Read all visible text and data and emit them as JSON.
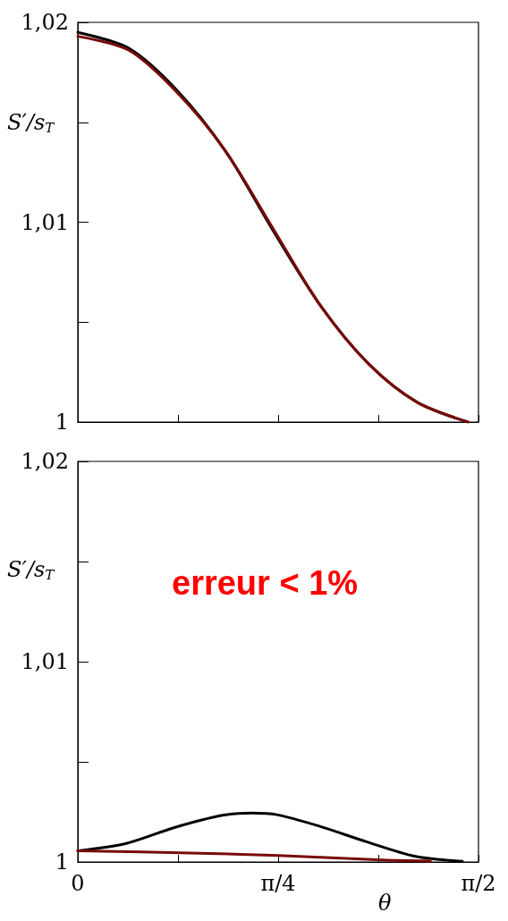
{
  "chart_data": [
    {
      "type": "line",
      "ylabel": "S′/s$_{T}$",
      "xlim": [
        0,
        1.5708
      ],
      "xticks": [
        {
          "value": 0,
          "label": null
        },
        {
          "value": 0.3927,
          "label": null
        },
        {
          "value": 0.7854,
          "label": null
        },
        {
          "value": 1.1781,
          "label": null
        },
        {
          "value": 1.5708,
          "label": null
        }
      ],
      "ylim": [
        1,
        1.02
      ],
      "yticks": [
        1,
        {
          "value": 1.005,
          "label": null
        },
        {
          "value": 1.01,
          "label": "1,01"
        },
        {
          "value": 1.015,
          "label": null
        },
        {
          "value": 1.02,
          "label": "1,02"
        }
      ],
      "tick_labels": "y",
      "grid": false,
      "marker": "none",
      "line_style": "solid",
      "series": [
        {
          "color": "#000000",
          "x": [
            0,
            0.2006,
            0.3886,
            0.5767,
            0.7647,
            0.9528,
            1.1408,
            1.3288,
            1.5294
          ],
          "values": [
            1.0195,
            1.0187,
            1.0166,
            1.0136,
            1.0096,
            1.0058,
            1.0029,
            1.001,
            1.0
          ]
        },
        {
          "color": "#7a0a0a",
          "x": [
            0,
            0.2006,
            0.3886,
            0.5767,
            0.7647,
            0.9528,
            1.1408,
            1.3288,
            1.5294
          ],
          "values": [
            1.0193,
            1.0186,
            1.0165,
            1.0136,
            1.0097,
            1.0058,
            1.0029,
            1.001,
            1.0
          ]
        }
      ]
    },
    {
      "type": "line",
      "ylabel": "S′/s$_{T}$",
      "xlabel": "θ",
      "annotations": [
        "erreur < 1%"
      ],
      "xlim": [
        0,
        1.5708
      ],
      "xticks": [
        0,
        {
          "value": 0.3927,
          "label": null
        },
        {
          "value": 0.7854,
          "label": "π/4"
        },
        {
          "value": 1.1781,
          "label": null
        },
        {
          "value": 1.5708,
          "label": "π/2"
        }
      ],
      "ylim": [
        1,
        1.02
      ],
      "yticks": [
        1,
        {
          "value": 1.005,
          "label": null
        },
        {
          "value": 1.01,
          "label": "1,01"
        },
        {
          "value": 1.015,
          "label": null
        },
        {
          "value": 1.02,
          "label": "1,02"
        }
      ],
      "grid": false,
      "marker": "none",
      "line_style": "solid",
      "series": [
        {
          "color": "#000000",
          "x": [
            0,
            0.1907,
            0.3789,
            0.5671,
            0.68,
            0.7804,
            0.9435,
            1.1317,
            1.3199,
            1.5081
          ],
          "values": [
            1.00056,
            1.00093,
            1.00172,
            1.00233,
            1.00244,
            1.00236,
            1.0018,
            1.00101,
            1.00029,
            1.00003
          ]
        },
        {
          "color": "#7a0a0a",
          "x": [
            0,
            0.4416,
            0.7866,
            1.1944,
            1.3826
          ],
          "values": [
            1.00056,
            1.00045,
            1.00032,
            1.0001,
            1.00005
          ]
        }
      ]
    }
  ]
}
